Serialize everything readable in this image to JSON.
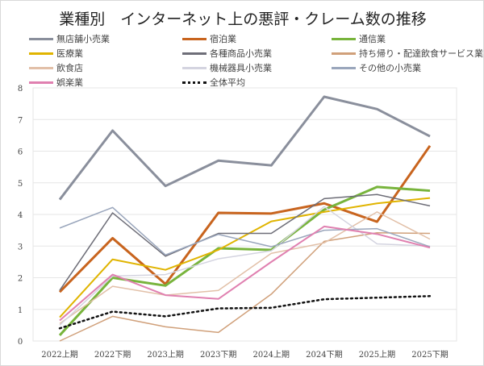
{
  "chart_data": {
    "type": "line",
    "title": "業種別　インターネット上の悪評・クレーム数の推移",
    "categories": [
      "2022上期",
      "2022下期",
      "2023上期",
      "2023下期",
      "2024上期",
      "2024下期",
      "2025上期",
      "2025下期"
    ],
    "ylim": [
      0,
      8
    ],
    "yticks": [
      "0",
      "1",
      "2",
      "3",
      "4",
      "5",
      "6",
      "7",
      "8"
    ],
    "grid": true,
    "legend": "top",
    "series": [
      {
        "name": "無店舗小売業",
        "color": "#8a8f9c",
        "width": 3,
        "values": [
          4.47,
          6.65,
          4.9,
          5.7,
          5.55,
          7.72,
          7.33,
          6.47
        ]
      },
      {
        "name": "宿泊業",
        "color": "#c8641e",
        "width": 3,
        "values": [
          1.55,
          3.25,
          1.8,
          4.05,
          4.03,
          4.35,
          3.77,
          6.17
        ]
      },
      {
        "name": "通信業",
        "color": "#78b43c",
        "width": 3,
        "values": [
          0.18,
          2.0,
          1.75,
          2.93,
          2.88,
          4.15,
          4.87,
          4.75
        ]
      },
      {
        "name": "医療業",
        "color": "#e0b400",
        "width": 2,
        "values": [
          0.75,
          2.58,
          2.25,
          2.88,
          3.78,
          4.08,
          4.35,
          4.52
        ]
      },
      {
        "name": "各種商品小売業",
        "color": "#6e6e78",
        "width": 1.5,
        "values": [
          1.6,
          4.05,
          2.68,
          3.4,
          3.4,
          4.5,
          4.63,
          4.27
        ]
      },
      {
        "name": "持ち帰り・配達飲食サービス業",
        "color": "#d0a07a",
        "width": 1.5,
        "values": [
          0.0,
          0.78,
          0.45,
          0.27,
          1.48,
          3.15,
          3.42,
          3.4
        ]
      },
      {
        "name": "飲食店",
        "color": "#e2c0a8",
        "width": 1.5,
        "values": [
          0.55,
          1.73,
          1.45,
          1.6,
          2.77,
          3.1,
          4.08,
          3.22
        ]
      },
      {
        "name": "機械器具小売業",
        "color": "#d4d4e0",
        "width": 1.5,
        "values": [
          0.5,
          2.05,
          2.1,
          2.6,
          2.85,
          4.25,
          3.07,
          3.0
        ]
      },
      {
        "name": "その他の小売業",
        "color": "#9aa6bc",
        "width": 1.5,
        "values": [
          3.57,
          4.22,
          2.72,
          3.37,
          2.98,
          3.5,
          3.55,
          2.98
        ]
      },
      {
        "name": "娯楽業",
        "color": "#e080b0",
        "width": 2,
        "values": [
          0.65,
          2.1,
          1.45,
          1.33,
          2.5,
          3.62,
          3.38,
          2.95
        ]
      },
      {
        "name": "全体平均",
        "color": "#111111",
        "width": 2.5,
        "dash": true,
        "values": [
          0.4,
          0.93,
          0.78,
          1.03,
          1.05,
          1.32,
          1.37,
          1.42
        ]
      }
    ]
  }
}
